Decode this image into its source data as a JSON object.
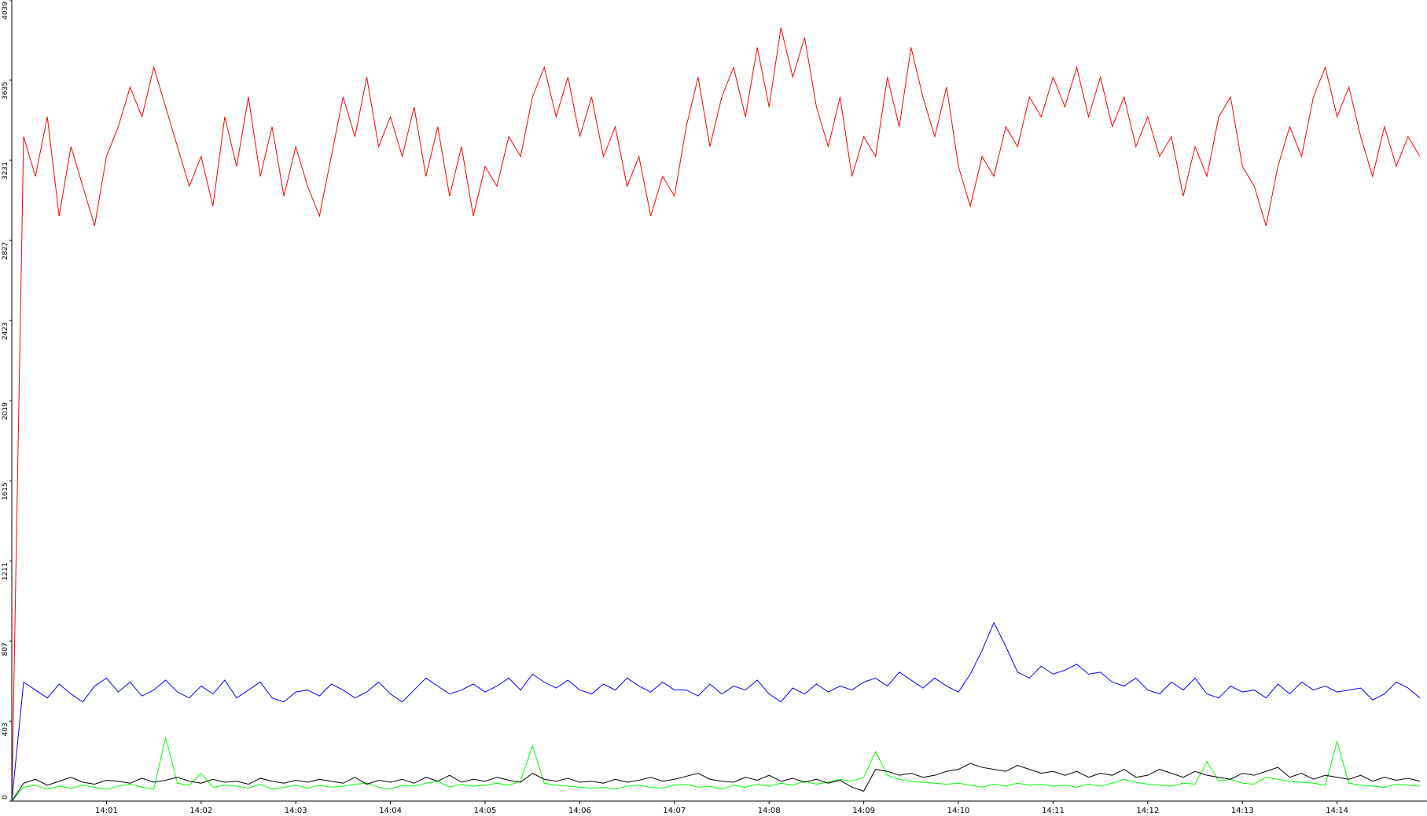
{
  "chart_data": {
    "type": "line",
    "x": [
      0,
      0.125,
      0.25,
      0.375,
      0.5,
      0.625,
      0.75,
      0.875,
      1,
      1.125,
      1.25,
      1.375,
      1.5,
      1.625,
      1.75,
      1.875,
      2,
      2.125,
      2.25,
      2.375,
      2.5,
      2.625,
      2.75,
      2.875,
      3,
      3.125,
      3.25,
      3.375,
      3.5,
      3.625,
      3.75,
      3.875,
      4,
      4.125,
      4.25,
      4.375,
      4.5,
      4.625,
      4.75,
      4.875,
      5,
      5.125,
      5.25,
      5.375,
      5.5,
      5.625,
      5.75,
      5.875,
      6,
      6.125,
      6.25,
      6.375,
      6.5,
      6.625,
      6.75,
      6.875,
      7,
      7.125,
      7.25,
      7.375,
      7.5,
      7.625,
      7.75,
      7.875,
      8,
      8.125,
      8.25,
      8.375,
      8.5,
      8.625,
      8.75,
      8.875,
      9,
      9.125,
      9.25,
      9.375,
      9.5,
      9.625,
      9.75,
      9.875,
      10,
      10.125,
      10.25,
      10.375,
      10.5,
      10.625,
      10.75,
      10.875,
      11,
      11.125,
      11.25,
      11.375,
      11.5,
      11.625,
      11.75,
      11.875,
      12,
      12.125,
      12.25,
      12.375,
      12.5,
      12.625,
      12.75,
      12.875,
      13,
      13.125,
      13.25,
      13.375,
      13.5,
      13.625,
      13.75,
      13.875,
      14,
      14.125,
      14.25,
      14.375,
      14.5,
      14.625,
      14.75,
      14.875
    ],
    "series": [
      {
        "color": "#ff0000",
        "values": [
          0,
          3350,
          3150,
          3450,
          2950,
          3300,
          3100,
          2900,
          3250,
          3400,
          3600,
          3450,
          3700,
          3500,
          3300,
          3100,
          3250,
          3000,
          3450,
          3200,
          3550,
          3150,
          3400,
          3050,
          3300,
          3100,
          2950,
          3250,
          3550,
          3350,
          3650,
          3300,
          3450,
          3250,
          3500,
          3150,
          3400,
          3050,
          3300,
          2950,
          3200,
          3100,
          3350,
          3250,
          3550,
          3700,
          3450,
          3650,
          3350,
          3550,
          3250,
          3400,
          3100,
          3250,
          2950,
          3150,
          3050,
          3400,
          3650,
          3300,
          3550,
          3700,
          3450,
          3800,
          3500,
          3900,
          3650,
          3850,
          3500,
          3300,
          3550,
          3150,
          3350,
          3250,
          3650,
          3400,
          3800,
          3550,
          3350,
          3600,
          3200,
          3000,
          3250,
          3150,
          3400,
          3300,
          3550,
          3450,
          3650,
          3500,
          3700,
          3450,
          3650,
          3400,
          3550,
          3300,
          3450,
          3250,
          3350,
          3050,
          3300,
          3150,
          3450,
          3550,
          3200,
          3100,
          2900,
          3200,
          3400,
          3250,
          3550,
          3700,
          3450,
          3600,
          3350,
          3150,
          3400,
          3200,
          3350,
          3250
        ]
      },
      {
        "color": "#0000ff",
        "values": [
          0,
          600,
          560,
          520,
          590,
          540,
          500,
          580,
          620,
          550,
          600,
          530,
          560,
          610,
          550,
          520,
          580,
          540,
          610,
          520,
          560,
          600,
          520,
          500,
          550,
          560,
          530,
          590,
          560,
          520,
          550,
          600,
          540,
          500,
          560,
          620,
          580,
          540,
          560,
          590,
          550,
          580,
          620,
          560,
          640,
          600,
          570,
          610,
          560,
          540,
          590,
          560,
          620,
          580,
          550,
          600,
          560,
          560,
          530,
          590,
          540,
          580,
          560,
          610,
          540,
          500,
          570,
          540,
          590,
          550,
          580,
          560,
          600,
          620,
          580,
          650,
          610,
          570,
          620,
          580,
          550,
          640,
          760,
          900,
          780,
          650,
          620,
          680,
          640,
          660,
          690,
          640,
          650,
          600,
          580,
          620,
          560,
          540,
          600,
          560,
          620,
          540,
          520,
          580,
          550,
          560,
          520,
          590,
          540,
          600,
          560,
          580,
          550,
          560,
          570,
          510,
          540,
          600,
          570,
          520
        ]
      },
      {
        "color": "#00ff00",
        "values": [
          0,
          70,
          80,
          60,
          75,
          65,
          80,
          70,
          60,
          75,
          85,
          70,
          60,
          320,
          90,
          80,
          140,
          70,
          80,
          75,
          65,
          85,
          60,
          70,
          80,
          65,
          80,
          70,
          75,
          85,
          90,
          70,
          60,
          80,
          75,
          90,
          100,
          70,
          85,
          75,
          80,
          90,
          80,
          100,
          280,
          90,
          80,
          75,
          70,
          65,
          70,
          60,
          75,
          80,
          70,
          65,
          80,
          85,
          70,
          75,
          60,
          80,
          70,
          85,
          75,
          90,
          80,
          100,
          85,
          95,
          110,
          100,
          120,
          250,
          130,
          110,
          100,
          95,
          90,
          85,
          90,
          80,
          70,
          85,
          75,
          90,
          80,
          85,
          75,
          80,
          70,
          85,
          75,
          90,
          110,
          95,
          85,
          80,
          75,
          90,
          85,
          200,
          100,
          110,
          90,
          85,
          120,
          110,
          100,
          95,
          90,
          80,
          300,
          90,
          80,
          75,
          70,
          85,
          80,
          75
        ]
      },
      {
        "color": "#000000",
        "values": [
          0,
          90,
          110,
          80,
          100,
          120,
          95,
          85,
          105,
          100,
          90,
          115,
          95,
          105,
          120,
          100,
          90,
          110,
          95,
          100,
          85,
          115,
          100,
          90,
          105,
          95,
          110,
          100,
          90,
          120,
          85,
          105,
          95,
          110,
          90,
          120,
          100,
          130,
          95,
          110,
          100,
          120,
          105,
          95,
          140,
          110,
          100,
          115,
          95,
          100,
          90,
          110,
          95,
          105,
          120,
          100,
          110,
          125,
          140,
          110,
          100,
          95,
          120,
          105,
          130,
          100,
          115,
          95,
          110,
          90,
          105,
          70,
          50,
          160,
          150,
          130,
          140,
          120,
          130,
          150,
          160,
          190,
          170,
          160,
          150,
          180,
          160,
          140,
          150,
          130,
          150,
          120,
          140,
          130,
          160,
          120,
          130,
          160,
          140,
          120,
          150,
          130,
          120,
          110,
          140,
          130,
          150,
          170,
          120,
          140,
          110,
          130,
          120,
          110,
          130,
          100,
          120,
          105,
          115,
          100
        ]
      }
    ],
    "xlim": [
      0,
      14.95
    ],
    "xticks": [
      {
        "value": 1,
        "label": "14:01"
      },
      {
        "value": 2,
        "label": "14:02"
      },
      {
        "value": 3,
        "label": "14:03"
      },
      {
        "value": 4,
        "label": "14:04"
      },
      {
        "value": 5,
        "label": "14:05"
      },
      {
        "value": 6,
        "label": "14:06"
      },
      {
        "value": 7,
        "label": "14:07"
      },
      {
        "value": 8,
        "label": "14:08"
      },
      {
        "value": 9,
        "label": "14:09"
      },
      {
        "value": 10,
        "label": "14:10"
      },
      {
        "value": 11,
        "label": "14:11"
      },
      {
        "value": 12,
        "label": "14:12"
      },
      {
        "value": 13,
        "label": "14:13"
      },
      {
        "value": 14,
        "label": "14:14"
      }
    ],
    "ylim": [
      0,
      4039
    ],
    "yticks": [
      0,
      403,
      807,
      1211,
      1615,
      2019,
      2423,
      2827,
      3231,
      3635,
      4039
    ]
  }
}
